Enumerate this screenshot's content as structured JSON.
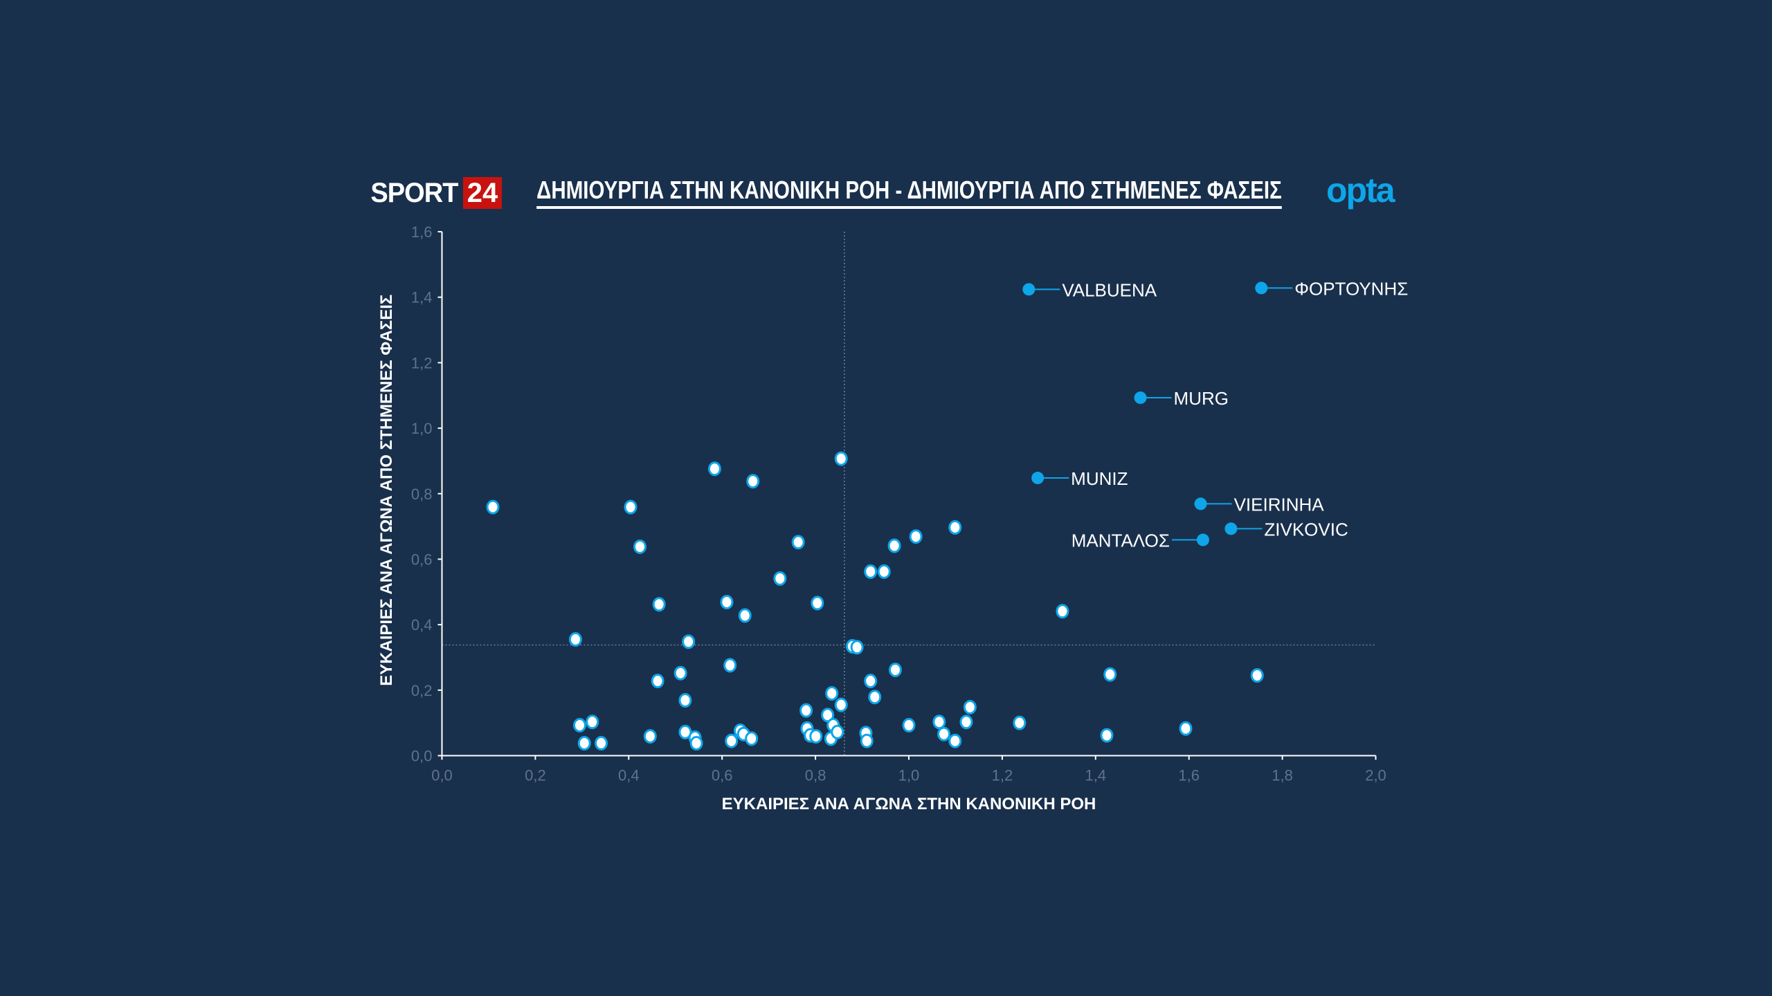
{
  "header": {
    "logo_text": "SPORT",
    "logo_number": "24",
    "title": "ΔΗΜΙΟΥΡΓΙΑ ΣΤΗΝ ΚΑΝΟΝΙΚΗ ΡΟΗ - ΔΗΜΙΟΥΡΓΙΑ ΑΠΟ ΣΤΗΜΕΝΕΣ ΦΑΣΕΙΣ",
    "provider": "opta"
  },
  "colors": {
    "background": "#19304c",
    "highlight": "#0ea5e9",
    "point_fill": "#ffffff",
    "point_stroke": "#0ea5e9",
    "logo_red": "#c8120f"
  },
  "chart_data": {
    "type": "scatter",
    "title": "ΔΗΜΙΟΥΡΓΙΑ ΣΤΗΝ ΚΑΝΟΝΙΚΗ ΡΟΗ - ΔΗΜΙΟΥΡΓΙΑ ΑΠΟ ΣΤΗΜΕΝΕΣ ΦΑΣΕΙΣ",
    "xlabel": "ΕΥΚΑΙΡΙΕΣ ΑΝΑ ΑΓΩΝΑ ΣΤΗΝ ΚΑΝΟΝΙΚΗ ΡΟΗ",
    "ylabel": "ΕΥΚΑΙΡΙΕΣ ΑΝΑ ΑΓΩΝΑ ΑΠΟ ΣΤΗΜΕΝΕΣ ΦΑΣΕΙΣ",
    "xlim": [
      0,
      2.0
    ],
    "ylim": [
      0,
      1.6
    ],
    "xticks": [
      "0,0",
      "0,2",
      "0,4",
      "0,6",
      "0,8",
      "1,0",
      "1,2",
      "1,4",
      "1,6",
      "1,8",
      "2,0"
    ],
    "yticks": [
      "0,0",
      "0,2",
      "0,4",
      "0,6",
      "0,8",
      "1,0",
      "1,2",
      "1,4",
      "1,6"
    ],
    "reference_lines": {
      "x_mean": 0.862,
      "y_mean": 0.338
    },
    "highlighted": [
      {
        "name": "VALBUENA",
        "x": 1.257,
        "y": 1.424,
        "label_side": "right"
      },
      {
        "name": "ΦΟΡΤΟΥΝΗΣ",
        "x": 1.755,
        "y": 1.428,
        "label_side": "right"
      },
      {
        "name": "MURG",
        "x": 1.496,
        "y": 1.093,
        "label_side": "right"
      },
      {
        "name": "MUNIZ",
        "x": 1.276,
        "y": 0.848,
        "label_side": "right"
      },
      {
        "name": "VIEIRINHA",
        "x": 1.625,
        "y": 0.769,
        "label_side": "right"
      },
      {
        "name": "ZIVKOVIC",
        "x": 1.69,
        "y": 0.693,
        "label_side": "right"
      },
      {
        "name": "ΜΑΝΤΑΛΟΣ",
        "x": 1.63,
        "y": 0.659,
        "label_side": "left"
      }
    ],
    "points": [
      [
        0.109,
        0.759
      ],
      [
        0.286,
        0.355
      ],
      [
        0.295,
        0.093
      ],
      [
        0.305,
        0.038
      ],
      [
        0.322,
        0.103
      ],
      [
        0.341,
        0.038
      ],
      [
        0.404,
        0.759
      ],
      [
        0.424,
        0.638
      ],
      [
        0.446,
        0.059
      ],
      [
        0.462,
        0.228
      ],
      [
        0.465,
        0.462
      ],
      [
        0.511,
        0.252
      ],
      [
        0.521,
        0.072
      ],
      [
        0.521,
        0.169
      ],
      [
        0.528,
        0.348
      ],
      [
        0.542,
        0.055
      ],
      [
        0.545,
        0.038
      ],
      [
        0.584,
        0.876
      ],
      [
        0.61,
        0.469
      ],
      [
        0.617,
        0.276
      ],
      [
        0.62,
        0.045
      ],
      [
        0.639,
        0.076
      ],
      [
        0.646,
        0.066
      ],
      [
        0.649,
        0.428
      ],
      [
        0.663,
        0.052
      ],
      [
        0.666,
        0.838
      ],
      [
        0.724,
        0.541
      ],
      [
        0.763,
        0.652
      ],
      [
        0.78,
        0.138
      ],
      [
        0.782,
        0.083
      ],
      [
        0.789,
        0.062
      ],
      [
        0.801,
        0.059
      ],
      [
        0.804,
        0.466
      ],
      [
        0.826,
        0.124
      ],
      [
        0.835,
        0.19
      ],
      [
        0.838,
        0.093
      ],
      [
        0.833,
        0.052
      ],
      [
        0.847,
        0.072
      ],
      [
        0.855,
        0.907
      ],
      [
        0.855,
        0.155
      ],
      [
        0.879,
        0.334
      ],
      [
        0.889,
        0.331
      ],
      [
        0.908,
        0.069
      ],
      [
        0.91,
        0.045
      ],
      [
        0.918,
        0.562
      ],
      [
        0.918,
        0.228
      ],
      [
        0.927,
        0.179
      ],
      [
        0.947,
        0.562
      ],
      [
        0.969,
        0.641
      ],
      [
        0.971,
        0.262
      ],
      [
        1.0,
        0.093
      ],
      [
        1.015,
        0.669
      ],
      [
        1.065,
        0.103
      ],
      [
        1.075,
        0.066
      ],
      [
        1.099,
        0.045
      ],
      [
        1.099,
        0.697
      ],
      [
        1.123,
        0.103
      ],
      [
        1.131,
        0.148
      ],
      [
        1.237,
        0.1
      ],
      [
        1.329,
        0.441
      ],
      [
        1.424,
        0.062
      ],
      [
        1.431,
        0.248
      ],
      [
        1.593,
        0.083
      ],
      [
        1.746,
        0.245
      ]
    ]
  }
}
